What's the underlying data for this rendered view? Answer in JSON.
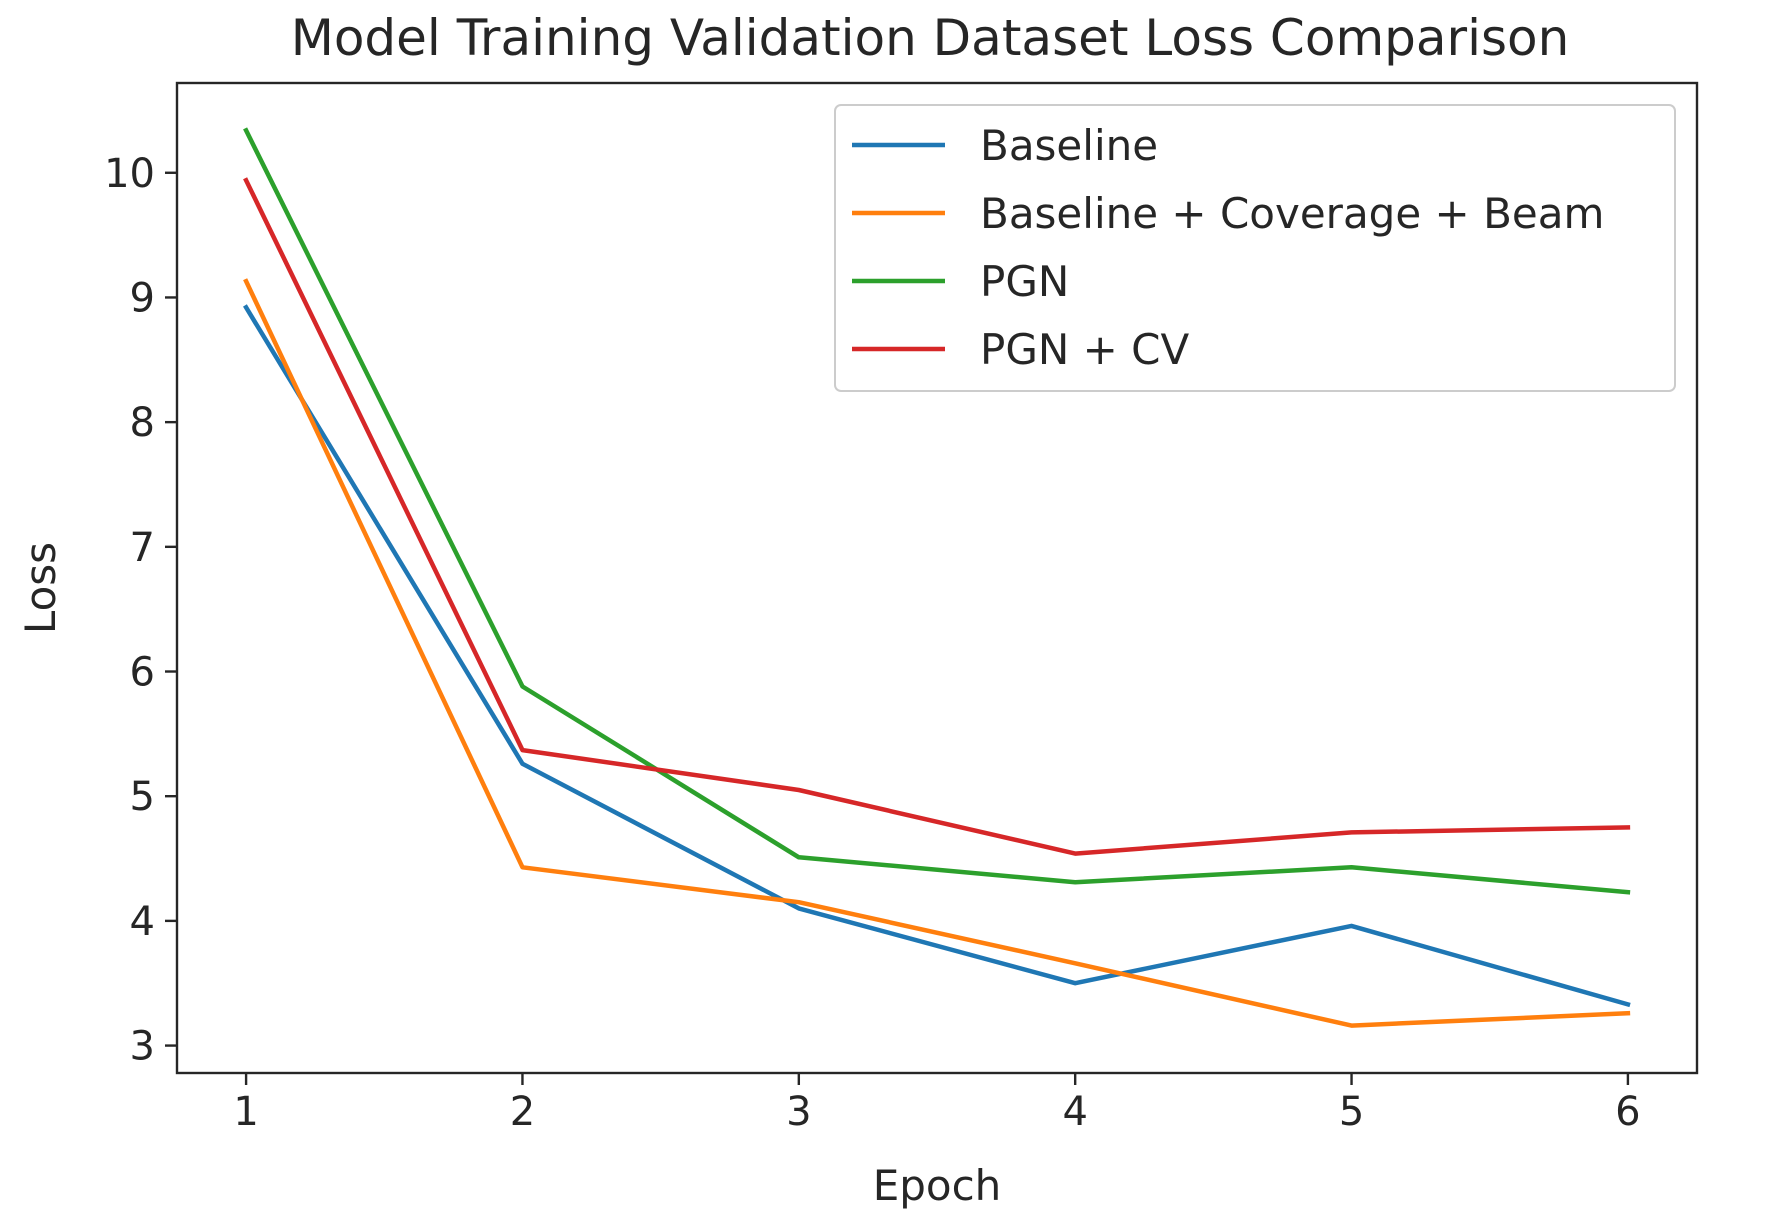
{
  "chart_data": {
    "type": "line",
    "title": "Model Training Validation Dataset Loss Comparison",
    "xlabel": "Epoch",
    "ylabel": "Loss",
    "x": [
      1,
      2,
      3,
      4,
      5,
      6
    ],
    "xticks": [
      "1",
      "2",
      "3",
      "4",
      "5",
      "6"
    ],
    "yticks": [
      "3",
      "4",
      "5",
      "6",
      "7",
      "8",
      "9",
      "10"
    ],
    "xlim": [
      0.75,
      6.25
    ],
    "ylim": [
      2.78,
      10.72
    ],
    "grid": false,
    "legend_position": "top-right",
    "series": [
      {
        "name": "Baseline",
        "color": "#1f77b4",
        "values": [
          8.92,
          5.26,
          4.1,
          3.5,
          3.96,
          3.33
        ]
      },
      {
        "name": "Baseline + Coverage + Beam",
        "color": "#ff7f0e",
        "values": [
          9.13,
          4.43,
          4.15,
          3.66,
          3.16,
          3.26
        ]
      },
      {
        "name": "PGN",
        "color": "#2ca02c",
        "values": [
          10.34,
          5.88,
          4.51,
          4.31,
          4.43,
          4.23
        ]
      },
      {
        "name": "PGN + CV",
        "color": "#d62728",
        "values": [
          9.94,
          5.37,
          5.05,
          4.54,
          4.71,
          4.75
        ]
      }
    ]
  }
}
